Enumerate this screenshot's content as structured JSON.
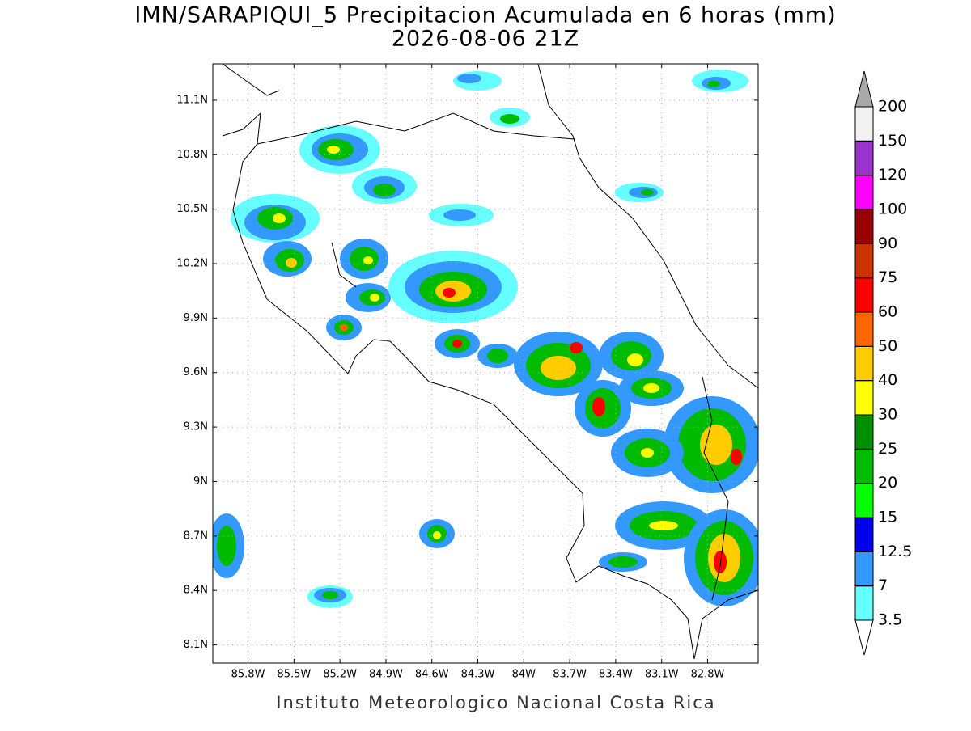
{
  "title": "IMN/SARAPIQUI_5 Precipitacion Acumulada en 6 horas (mm)",
  "subtitle": "2026-08-06 21Z",
  "map": {
    "xlim": [
      -86.03,
      -82.47
    ],
    "ylim": [
      8.0,
      11.3
    ],
    "xticks": [
      {
        "value": -85.8,
        "label": "85.8W"
      },
      {
        "value": -85.5,
        "label": "85.5W"
      },
      {
        "value": -85.2,
        "label": "85.2W"
      },
      {
        "value": -84.9,
        "label": "84.9W"
      },
      {
        "value": -84.6,
        "label": "84.6W"
      },
      {
        "value": -84.3,
        "label": "84.3W"
      },
      {
        "value": -84.0,
        "label": "84W"
      },
      {
        "value": -83.7,
        "label": "83.7W"
      },
      {
        "value": -83.4,
        "label": "83.4W"
      },
      {
        "value": -83.1,
        "label": "83.1W"
      },
      {
        "value": -82.8,
        "label": "82.8W"
      }
    ],
    "yticks": [
      {
        "value": 8.1,
        "label": "8.1N"
      },
      {
        "value": 8.4,
        "label": "8.4N"
      },
      {
        "value": 8.7,
        "label": "8.7N"
      },
      {
        "value": 9.0,
        "label": "9N"
      },
      {
        "value": 9.3,
        "label": "9.3N"
      },
      {
        "value": 9.6,
        "label": "9.6N"
      },
      {
        "value": 9.9,
        "label": "9.9N"
      },
      {
        "value": 10.2,
        "label": "10.2N"
      },
      {
        "value": 10.5,
        "label": "10.5N"
      },
      {
        "value": 10.8,
        "label": "10.8N"
      },
      {
        "value": 11.1,
        "label": "11.1N"
      }
    ],
    "grid": true
  },
  "colorbar": {
    "levels": [
      3.5,
      7,
      12.5,
      15,
      20,
      25,
      30,
      40,
      50,
      60,
      75,
      90,
      100,
      120,
      150,
      200
    ],
    "colors": [
      "#ffffff",
      "#66ffff",
      "#3399ff",
      "#0000ee",
      "#00ff00",
      "#00bb00",
      "#008f00",
      "#ffff00",
      "#ffcc00",
      "#ff6600",
      "#ff0000",
      "#cc3300",
      "#990000",
      "#ff00ff",
      "#9933cc",
      "#f2f2f2",
      "#aaaaaa"
    ]
  },
  "credit": "Instituto Meteorologico Nacional Costa Rica"
}
